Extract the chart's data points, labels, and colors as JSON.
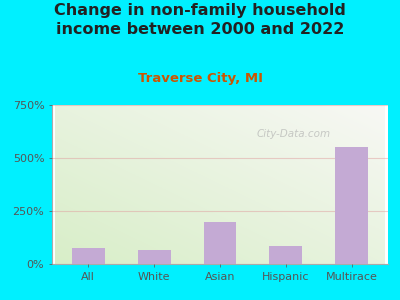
{
  "categories": [
    "All",
    "White",
    "Asian",
    "Hispanic",
    "Multirace"
  ],
  "values": [
    75,
    65,
    200,
    85,
    550
  ],
  "bar_color": "#c4aad4",
  "title": "Change in non-family household\nincome between 2000 and 2022",
  "subtitle": "Traverse City, MI",
  "title_fontsize": 11.5,
  "subtitle_fontsize": 9.5,
  "subtitle_color": "#cc5500",
  "title_color": "#222222",
  "ylim": [
    0,
    750
  ],
  "yticks": [
    0,
    250,
    500,
    750
  ],
  "ytick_labels": [
    "0%",
    "250%",
    "500%",
    "750%"
  ],
  "background_color": "#00f0ff",
  "plot_bg_left_bottom": "#d8eec8",
  "plot_bg_right_top": "#f5f5f0",
  "grid_color": "#e0a0a0",
  "grid_alpha": 0.5,
  "watermark": "City-Data.com",
  "tick_color": "#555555",
  "axis_color": "#aaaaaa"
}
